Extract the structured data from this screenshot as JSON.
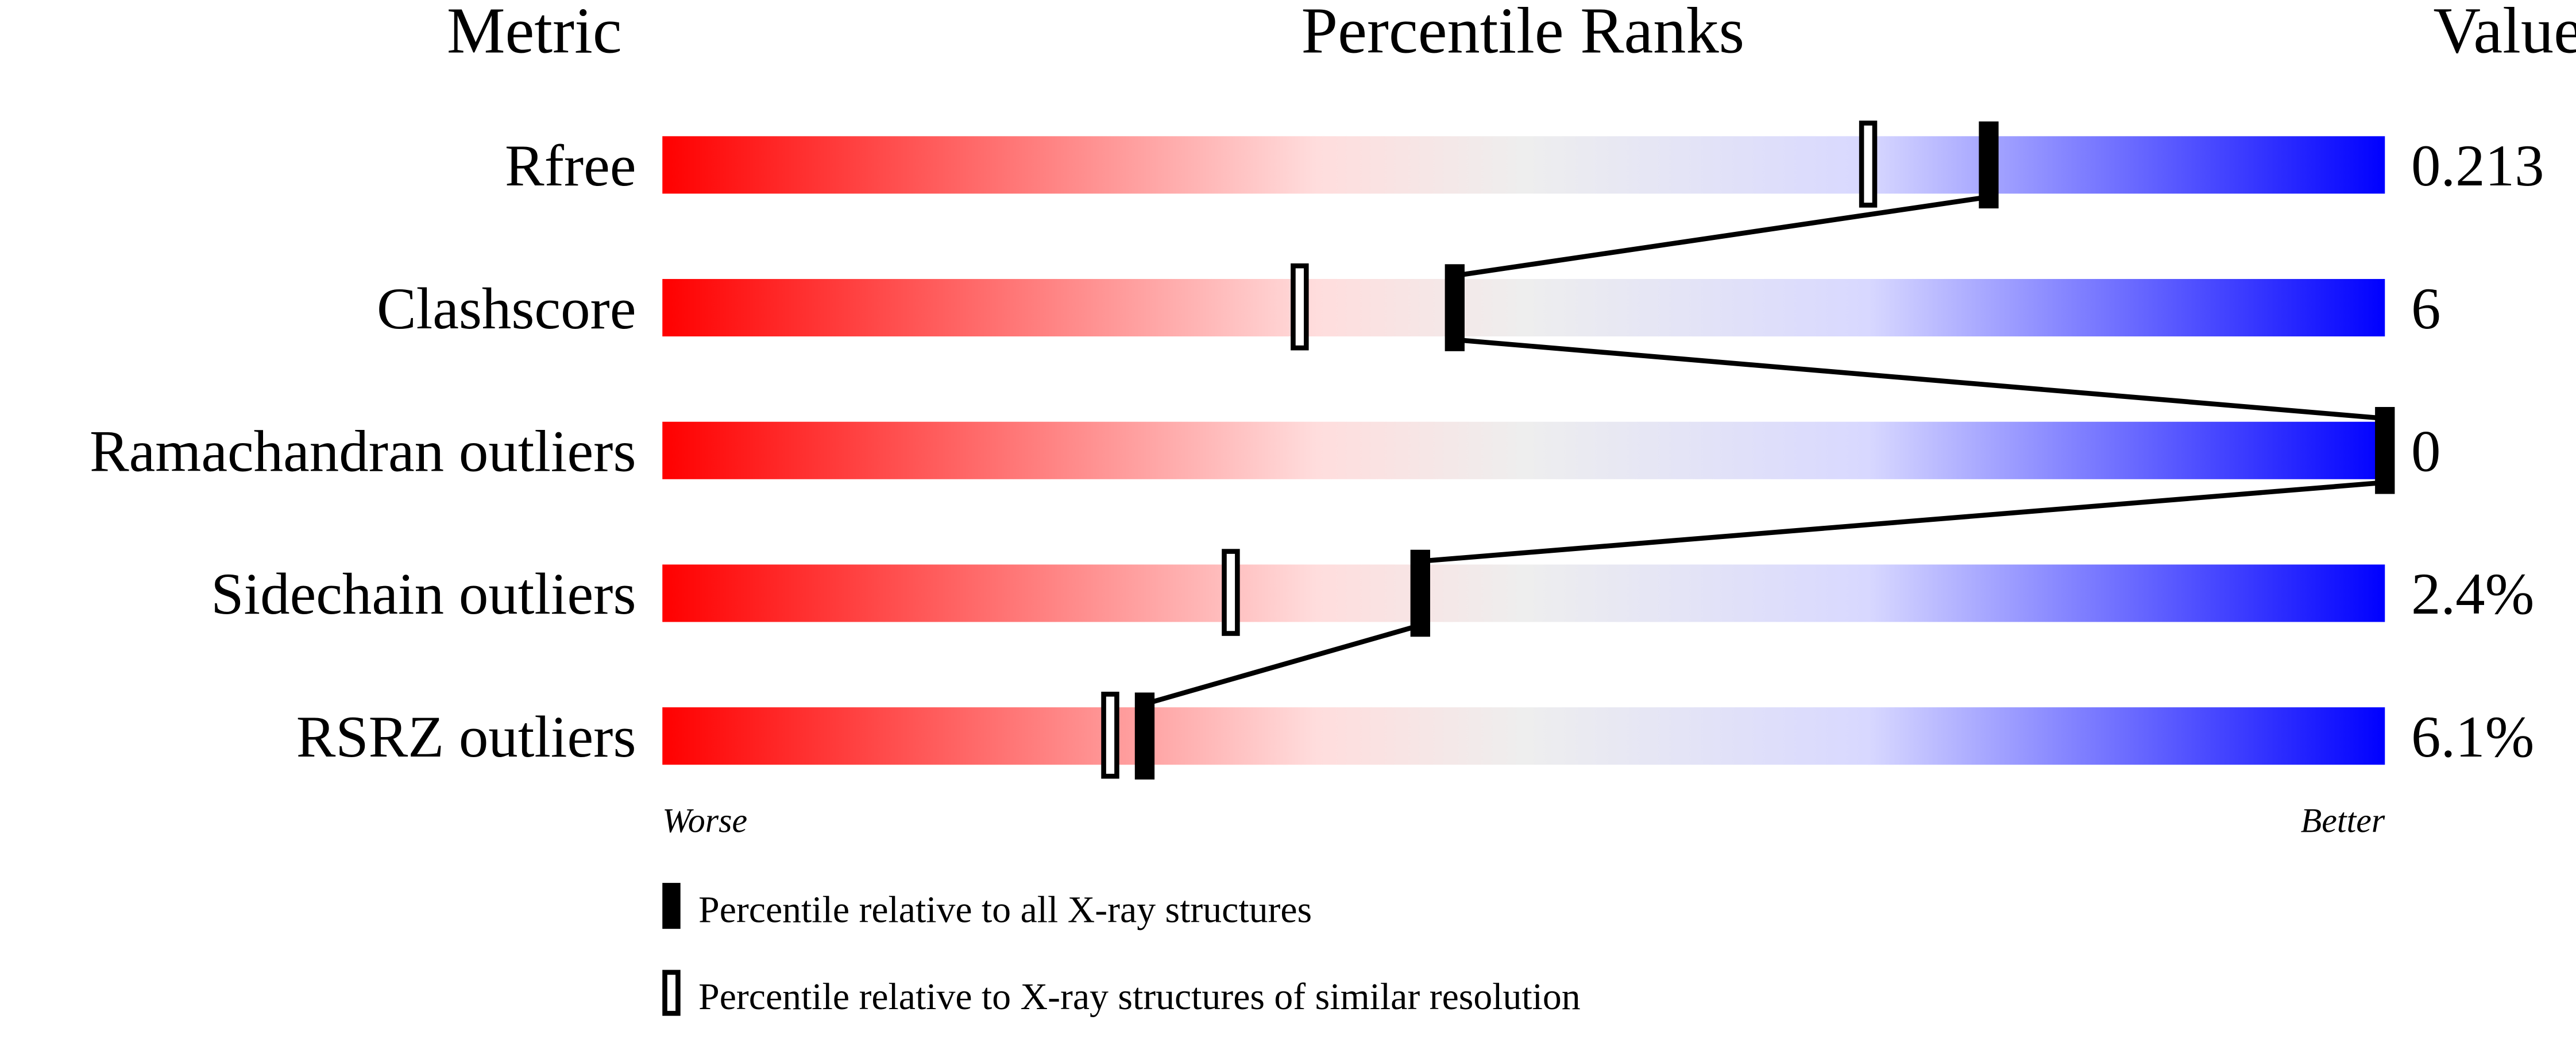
{
  "chart_data": {
    "type": "bar",
    "title": "Percentile Ranks",
    "headers": {
      "metric": "Metric",
      "percentile": "Percentile Ranks",
      "value": "Value"
    },
    "xlim": [
      0,
      100
    ],
    "axis_labels": {
      "left": "Worse",
      "right": "Better"
    },
    "gradient_colors": [
      "#ff0000",
      "#ffdddd",
      "#eeeeee",
      "#d8d8ff",
      "#0000ff"
    ],
    "rows": [
      {
        "metric": "Rfree",
        "value": "0.213",
        "percentile_all": 77,
        "percentile_similar": 70
      },
      {
        "metric": "Clashscore",
        "value": "6",
        "percentile_all": 46,
        "percentile_similar": 37
      },
      {
        "metric": "Ramachandran outliers",
        "value": "0",
        "percentile_all": 100,
        "percentile_similar": 100
      },
      {
        "metric": "Sidechain outliers",
        "value": "2.4%",
        "percentile_all": 44,
        "percentile_similar": 33
      },
      {
        "metric": "RSRZ outliers",
        "value": "6.1%",
        "percentile_all": 28,
        "percentile_similar": 26
      }
    ],
    "legend": [
      {
        "marker": "filled",
        "label": "Percentile relative to all X-ray structures"
      },
      {
        "marker": "hollow",
        "label": "Percentile relative to X-ray structures of similar resolution"
      }
    ]
  }
}
